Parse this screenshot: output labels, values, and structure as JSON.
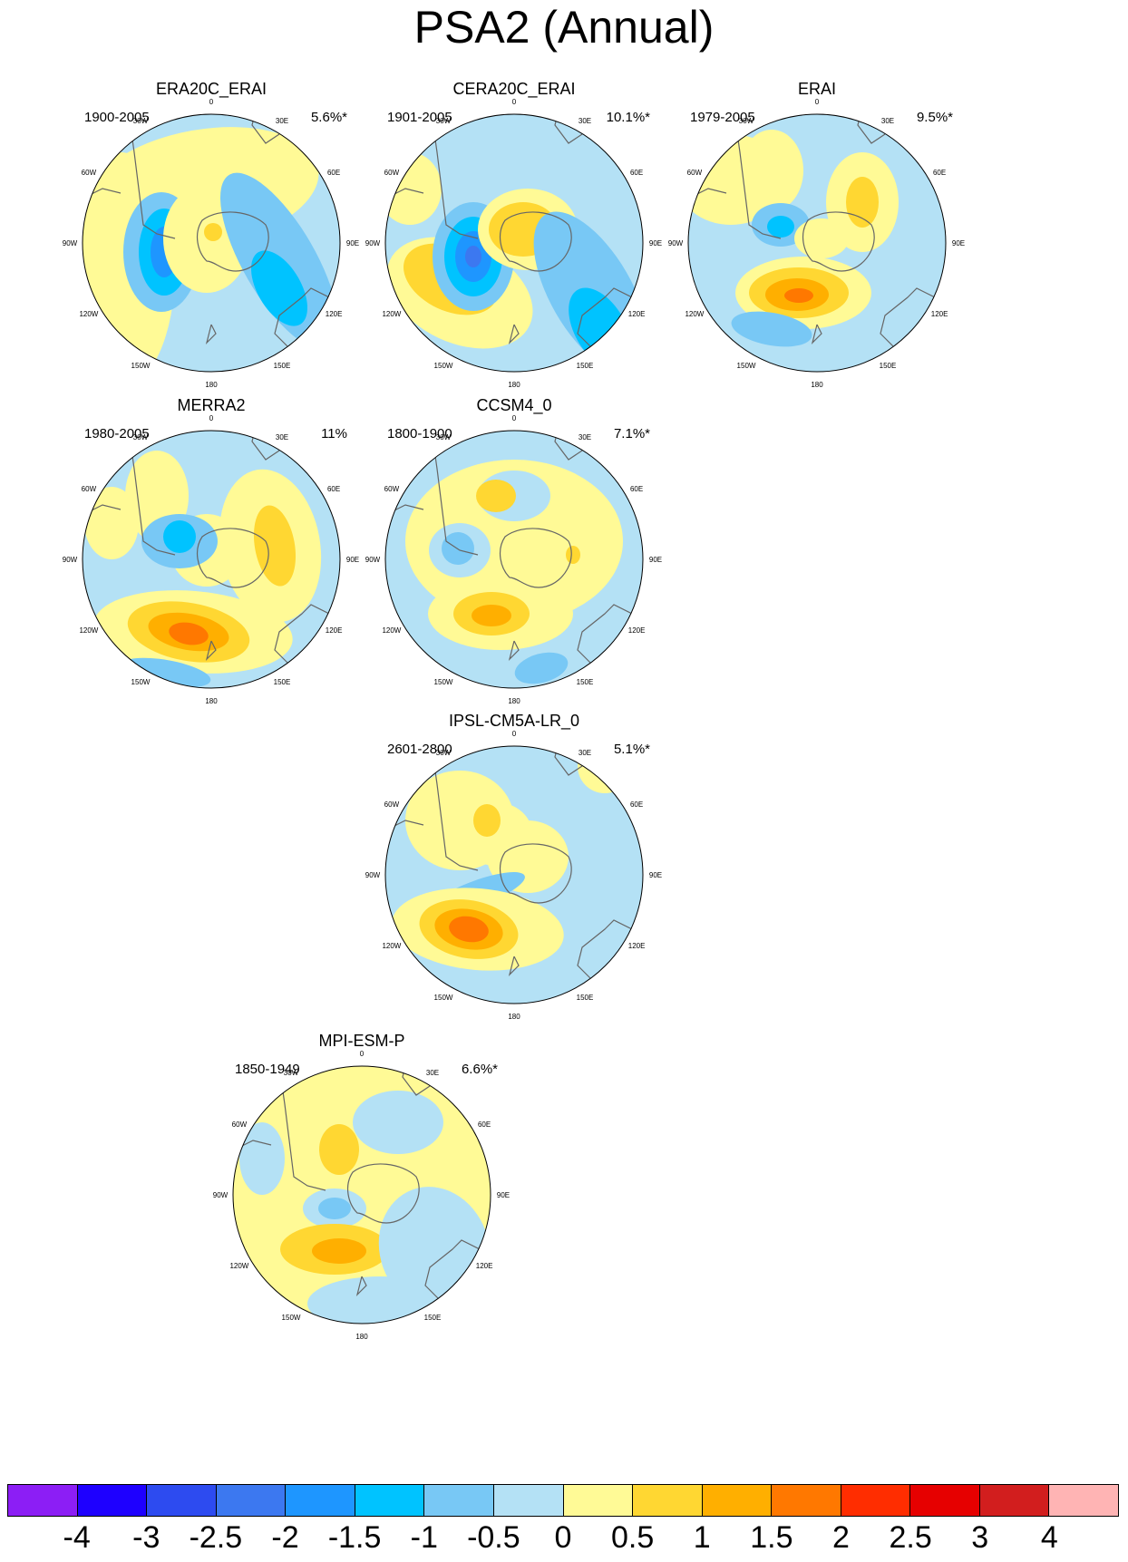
{
  "title": "PSA2 (Annual)",
  "panels": [
    {
      "name": "ERA20C_ERAI",
      "period": "1900-2005",
      "variance": "5.6%*"
    },
    {
      "name": "CERA20C_ERAI",
      "period": "1901-2005",
      "variance": "10.1%*"
    },
    {
      "name": "ERAI",
      "period": "1979-2005",
      "variance": "9.5%*"
    },
    {
      "name": "MERRA2",
      "period": "1980-2005",
      "variance": "11%"
    },
    {
      "name": "CCSM4_0",
      "period": "1800-1900",
      "variance": "7.1%*"
    },
    {
      "name": "IPSL-CM5A-LR_0",
      "period": "2601-2800",
      "variance": "5.1%*"
    },
    {
      "name": "MPI-ESM-P",
      "period": "1850-1949",
      "variance": "6.6%*"
    }
  ],
  "map_labels": {
    "lon_0": "0",
    "lon_30e": "30E",
    "lon_60e": "60E",
    "lon_90e": "90E",
    "lon_120e": "120E",
    "lon_150e": "150E",
    "lon_180": "180",
    "lon_150w": "150W",
    "lon_120w": "120W",
    "lon_90w": "90W",
    "lon_60w": "60W",
    "lon_30w": "30W"
  },
  "colorbar": {
    "colors": [
      "#8c1ef5",
      "#1e00ff",
      "#2d4bf0",
      "#3c78f0",
      "#1e96ff",
      "#00c3ff",
      "#78c8f5",
      "#b4e1f5",
      "#fffa96",
      "#ffd732",
      "#ffaf00",
      "#ff7800",
      "#ff2d00",
      "#e60000",
      "#d21e1e",
      "#ffb4b4"
    ],
    "labels": [
      "-4",
      "-3",
      "-2.5",
      "-2",
      "-1.5",
      "-1",
      "-0.5",
      "0",
      "0.5",
      "1",
      "1.5",
      "2",
      "2.5",
      "3",
      "4"
    ]
  },
  "fill_colors": {
    "yellow": "#fffa96",
    "light_blue": "#b4e1f5",
    "blue_05": "#78c8f5",
    "blue_1": "#00c3ff",
    "blue_15": "#1e96ff",
    "blue_2": "#3c78f0",
    "orange_1": "#ffd732",
    "orange_15": "#ffaf00",
    "orange_2": "#ff7800"
  }
}
